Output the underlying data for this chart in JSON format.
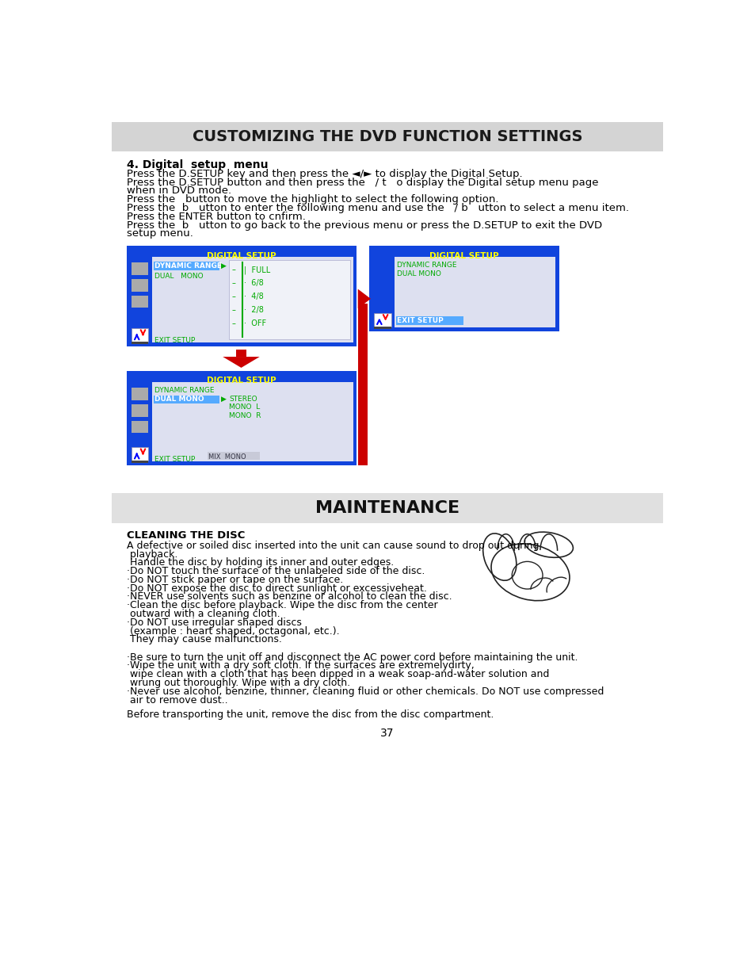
{
  "page_bg": "#ffffff",
  "header_bg": "#d4d4d4",
  "header_text": "CUSTOMIZING THE DVD FUNCTION SETTINGS",
  "header_text_color": "#1a1a1a",
  "section4_title": "4. Digital  setup  menu",
  "body_lines_top": [
    "Press the D.SETUP key and then press the ◄/► to display the Digital Setup.",
    "Press the D.SETUP button and then press the   / t   o display the Digital setup menu page",
    "when in DVD mode.",
    "Press the   button to move the highlight to select the following option.",
    "Press the  b   utton to enter the following menu and use the   / b   utton to select a menu item.",
    "Press the ENTER button to cnfirm.",
    "Press the  b   utton to go back to the previous menu or press the D.SETUP to exit the DVD",
    "setup menu."
  ],
  "maintenance_bg": "#e0e0e0",
  "maintenance_text": "MAINTENANCE",
  "cleaning_title": "CLEANING THE DISC",
  "cleaning_body": [
    "A defective or soiled disc inserted into the unit can cause sound to drop out during",
    " playback.",
    " Handle the disc by holding its inner and outer edges.",
    "·Do NOT touch the surface of the unlabeled side of the disc.",
    "·Do NOT stick paper or tape on the surface.",
    "·Do NOT expose the disc to direct sunlight or excessiveheat.",
    "·NEVER use solvents such as benzine or alcohol to clean the disc.",
    "·Clean the disc before playback. Wipe the disc from the center",
    " outward with a cleaning cloth.",
    "·Do NOT use irregular shaped discs",
    " (example : heart shaped, octagonal, etc.).",
    " They may cause malfunctions."
  ],
  "extra_body": [
    "·Be sure to turn the unit off and disconnect the AC power cord before maintaining the unit.",
    "·Wipe the unit with a dry soft cloth. If the surfaces are extremelydirty,",
    " wipe clean with a cloth that has been dipped in a weak soap-and-water solution and",
    " wrung out thoroughly. Wipe with a dry cloth.",
    "·Never use alcohol, benzine, thinner, cleaning fluid or other chemicals. Do NOT use compressed",
    " air to remove dust.."
  ],
  "footer_line": "Before transporting the unit, remove the disc from the disc compartment.",
  "page_number": "37",
  "dvd_box_bg": "#1144dd",
  "dvd_box_title_color": "#ffff00",
  "dvd_box_title": "DIGITAL SETUP",
  "dvd_inner_bg": "#dde0f0",
  "dvd_green": "#00aa00",
  "dvd_cyan": "#00ccff",
  "dvd_highlight": "#55aaff",
  "arrow_red": "#cc0000"
}
